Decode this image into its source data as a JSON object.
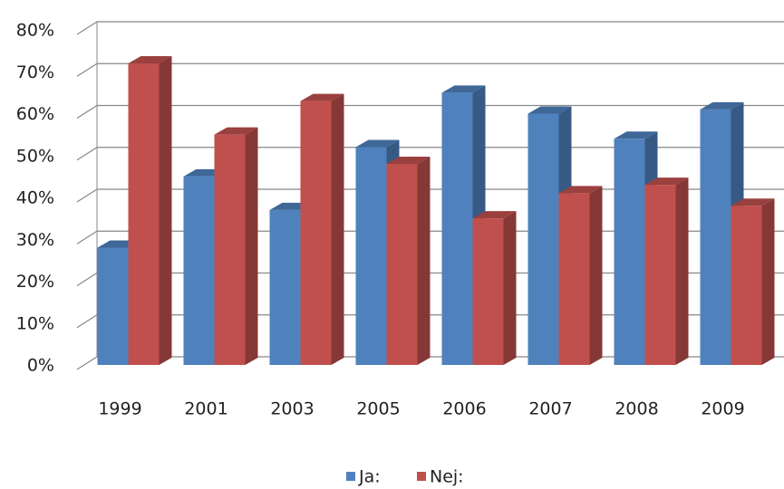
{
  "chart_data": {
    "type": "bar3d",
    "categories": [
      "1999",
      "2001",
      "2003",
      "2005",
      "2006",
      "2007",
      "2008",
      "2009"
    ],
    "series": [
      {
        "name": "Ja:",
        "color": "#4f81bd",
        "values": [
          28,
          45,
          37,
          52,
          65,
          60,
          54,
          61
        ]
      },
      {
        "name": "Nej:",
        "color": "#c0504d",
        "values": [
          72,
          55,
          63,
          48,
          35,
          41,
          43,
          38
        ]
      }
    ],
    "ylim": [
      0,
      80
    ],
    "yticks": [
      {
        "value": 0,
        "label": "0%"
      },
      {
        "value": 10,
        "label": "10%"
      },
      {
        "value": 20,
        "label": "20%"
      },
      {
        "value": 30,
        "label": "30%"
      },
      {
        "value": 40,
        "label": "40%"
      },
      {
        "value": 50,
        "label": "50%"
      },
      {
        "value": 60,
        "label": "60%"
      },
      {
        "value": 70,
        "label": "70%"
      },
      {
        "value": 80,
        "label": "80%"
      }
    ],
    "grid": true,
    "legend": "bottom"
  }
}
